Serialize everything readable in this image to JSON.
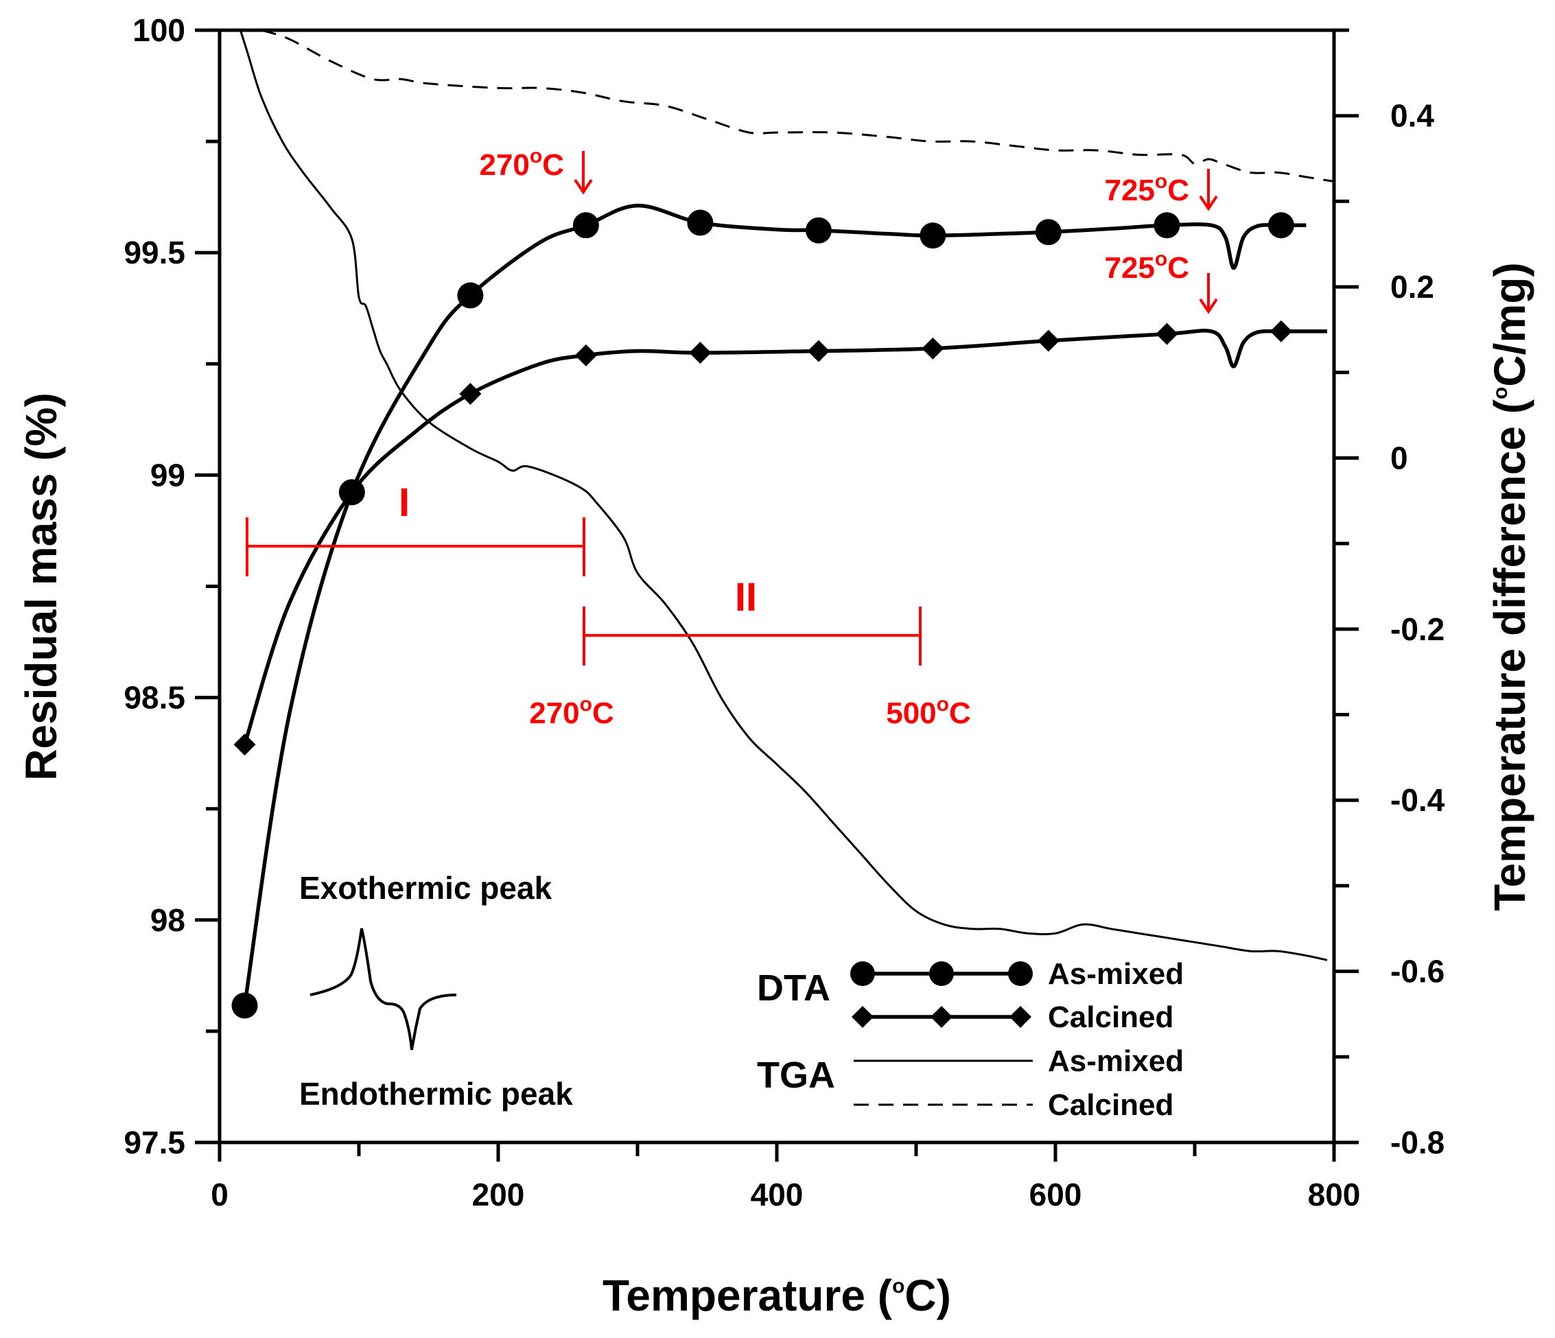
{
  "chart_data": {
    "type": "line",
    "x_axis": {
      "title": "Temperature (°C)",
      "title_main": "Temperature (",
      "title_sup": "o",
      "title_end": "C)",
      "range": [
        0,
        800
      ],
      "ticks": [
        "0",
        "200",
        "400",
        "600",
        "800"
      ]
    },
    "y_left": {
      "title": "Residual mass (%)",
      "range": [
        97.5,
        100
      ],
      "ticks": [
        "97.5",
        "98",
        "98.5",
        "99",
        "99.5",
        "100"
      ]
    },
    "y_right": {
      "title": "Temperature difference (°C/mg)",
      "title_start": "Temperature difference (",
      "title_sup": "o",
      "title_end": "C/mg)",
      "range": [
        -0.8,
        0.5
      ],
      "ticks": [
        "-0.8",
        "-0.6",
        "-0.4",
        "-0.2",
        "0",
        "0.2",
        "0.4"
      ]
    },
    "series": [
      {
        "name": "DTA As-mixed",
        "axis": "right",
        "style": "line-circle",
        "x": [
          18,
          50,
          95,
          150,
          180,
          230,
          263,
          300,
          345,
          400,
          430,
          480,
          512,
          560,
          595,
          640,
          680,
          712,
          722,
          728,
          735,
          745,
          762,
          780
        ],
        "y": [
          -0.64,
          -0.3,
          -0.04,
          0.13,
          0.19,
          0.252,
          0.272,
          0.295,
          0.275,
          0.267,
          0.266,
          0.262,
          0.26,
          0.262,
          0.264,
          0.268,
          0.272,
          0.272,
          0.258,
          0.222,
          0.258,
          0.271,
          0.272,
          0.272
        ],
        "markers_x": [
          18,
          95,
          180,
          263,
          345,
          430,
          512,
          595,
          680,
          762
        ]
      },
      {
        "name": "DTA Calcined",
        "axis": "right",
        "style": "line-diamond",
        "x": [
          18,
          50,
          95,
          140,
          180,
          230,
          263,
          300,
          345,
          430,
          512,
          595,
          680,
          712,
          722,
          728,
          735,
          745,
          762,
          795
        ],
        "y": [
          -0.335,
          -0.17,
          -0.04,
          0.03,
          0.075,
          0.11,
          0.12,
          0.125,
          0.123,
          0.125,
          0.128,
          0.137,
          0.145,
          0.148,
          0.13,
          0.107,
          0.135,
          0.147,
          0.148,
          0.148
        ],
        "markers_x": [
          18,
          180,
          263,
          345,
          430,
          512,
          595,
          680,
          762
        ]
      },
      {
        "name": "TGA As-mixed",
        "axis": "left",
        "style": "solid",
        "x": [
          15,
          20,
          30,
          45,
          60,
          80,
          95,
          100,
          105,
          110,
          115,
          120,
          130,
          150,
          180,
          200,
          210,
          220,
          240,
          260,
          270,
          290,
          300,
          320,
          340,
          360,
          380,
          400,
          420,
          440,
          460,
          480,
          500,
          520,
          540,
          560,
          580,
          600,
          620,
          640,
          660,
          680,
          700,
          720,
          740,
          760,
          780,
          795
        ],
        "y": [
          100,
          99.95,
          99.85,
          99.75,
          99.68,
          99.6,
          99.53,
          99.4,
          99.38,
          99.33,
          99.28,
          99.25,
          99.19,
          99.12,
          99.06,
          99.03,
          99.01,
          99.02,
          99.0,
          98.97,
          98.94,
          98.86,
          98.78,
          98.71,
          98.62,
          98.5,
          98.41,
          98.35,
          98.29,
          98.22,
          98.15,
          98.08,
          98.02,
          97.99,
          97.98,
          97.98,
          97.97,
          97.97,
          97.99,
          97.98,
          97.97,
          97.96,
          97.95,
          97.94,
          97.93,
          97.93,
          97.92,
          97.91
        ],
        "markers_x": []
      },
      {
        "name": "TGA Calcined",
        "axis": "left",
        "style": "dashed",
        "x": [
          30,
          50,
          80,
          110,
          130,
          150,
          200,
          230,
          260,
          290,
          320,
          350,
          380,
          400,
          440,
          480,
          510,
          540,
          570,
          600,
          630,
          660,
          690,
          700,
          710,
          720,
          740,
          760,
          780,
          800
        ],
        "y": [
          100,
          99.98,
          99.93,
          99.89,
          99.89,
          99.88,
          99.87,
          99.87,
          99.86,
          99.84,
          99.83,
          99.8,
          99.77,
          99.77,
          99.77,
          99.76,
          99.75,
          99.75,
          99.74,
          99.73,
          99.73,
          99.72,
          99.72,
          99.7,
          99.71,
          99.7,
          99.68,
          99.68,
          99.67,
          99.66
        ],
        "markers_x": []
      }
    ],
    "legend": {
      "placement": "bottom-right",
      "dta_label": "DTA",
      "tga_label": "TGA",
      "entries": [
        "As-mixed",
        "Calcined",
        "As-mixed",
        "Calcined"
      ]
    },
    "annotations": {
      "arrow_270": {
        "main": "270",
        "sup": "o",
        "end": "C",
        "x": 263
      },
      "arrow_725_top": {
        "main": "725",
        "sup": "o",
        "end": "C",
        "x": 712
      },
      "arrow_725_bottom": {
        "main": "725",
        "sup": "o",
        "end": "C",
        "x": 712
      },
      "region_I": {
        "label": "I",
        "x_start": 20,
        "x_end": 262,
        "y": 98.84
      },
      "region_II": {
        "label": "II",
        "x_start": 262,
        "x_end": 503,
        "y": 98.63,
        "start_main": "270",
        "start_sup": "o",
        "start_end": "C",
        "end_main": "500",
        "end_sup": "o",
        "end_end": "C"
      },
      "exo_label": "Exothermic peak",
      "endo_label": "Endothermic peak"
    }
  }
}
